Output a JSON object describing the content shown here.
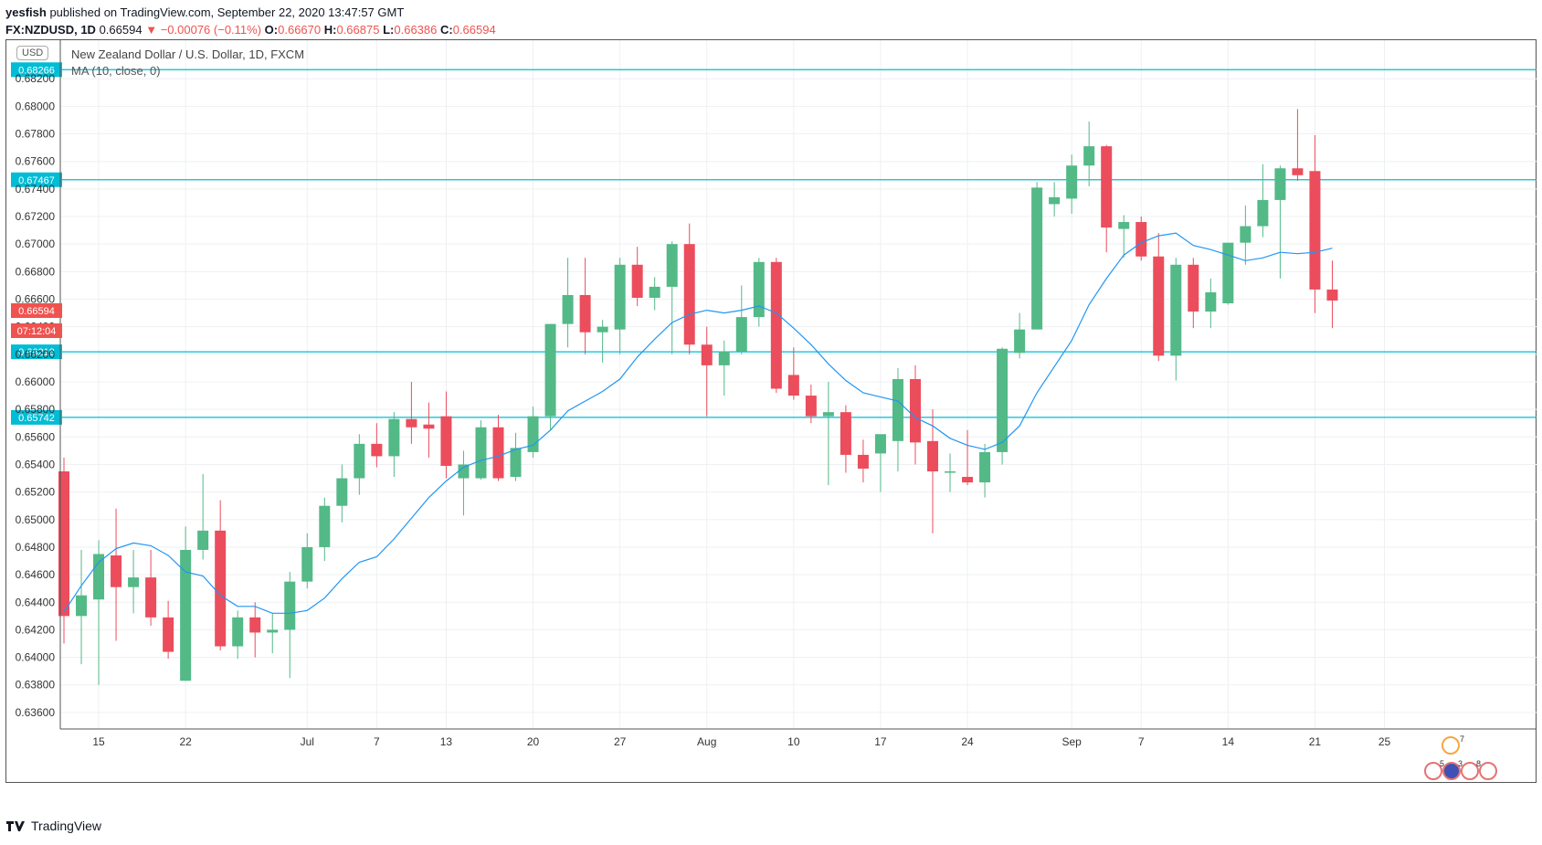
{
  "header": {
    "publisher": "yesfish",
    "published_text": "published on TradingView.com, September 22, 2020 13:47:57 GMT",
    "symbol": "FX:NZDUSD, 1D",
    "last": "0.66594",
    "change": "−0.00076 (−0.11%)",
    "o_label": "O:",
    "o": "0.66670",
    "h_label": "H:",
    "h": "0.66875",
    "l_label": "L:",
    "l": "0.66386",
    "c_label": "C:",
    "c": "0.66594"
  },
  "chart_header": {
    "currency": "USD",
    "title": "New Zealand Dollar / U.S. Dollar, 1D, FXCM",
    "indicator": "MA (10, close, 0)"
  },
  "price_badges": {
    "current_price": "0.66594",
    "countdown": "07:12:04"
  },
  "footer": {
    "brand": "TradingView"
  },
  "colors": {
    "up": "#53b987",
    "down": "#eb4d5c",
    "ma": "#2196f3",
    "hline": "#00bcd4",
    "badge_red": "#ef5350",
    "badge_cyan": "#00bcd4"
  },
  "chart_data": {
    "type": "candlestick",
    "symbol": "FX:NZDUSD",
    "timeframe": "1D",
    "ylim": [
      0.6348,
      0.6848
    ],
    "y_ticks": [
      "0.68200",
      "0.68000",
      "0.67800",
      "0.67600",
      "0.67400",
      "0.67200",
      "0.67000",
      "0.66800",
      "0.66600",
      "0.66400",
      "0.66200",
      "0.66000",
      "0.65800",
      "0.65600",
      "0.65400",
      "0.65200",
      "0.65000",
      "0.64800",
      "0.64600",
      "0.64400",
      "0.64200",
      "0.64000",
      "0.63800",
      "0.63600"
    ],
    "x_ticks": [
      {
        "label": "15",
        "index": 2
      },
      {
        "label": "22",
        "index": 7
      },
      {
        "label": "Jul",
        "index": 14
      },
      {
        "label": "7",
        "index": 18
      },
      {
        "label": "13",
        "index": 22
      },
      {
        "label": "20",
        "index": 27
      },
      {
        "label": "27",
        "index": 32
      },
      {
        "label": "Aug",
        "index": 37
      },
      {
        "label": "10",
        "index": 42
      },
      {
        "label": "17",
        "index": 47
      },
      {
        "label": "24",
        "index": 52
      },
      {
        "label": "Sep",
        "index": 58
      },
      {
        "label": "7",
        "index": 62
      },
      {
        "label": "14",
        "index": 67
      },
      {
        "label": "21",
        "index": 72
      },
      {
        "label": "25",
        "index": 76
      }
    ],
    "horizontal_lines": [
      {
        "price": 0.68266,
        "label": "0.68266"
      },
      {
        "price": 0.67467,
        "label": "0.67467"
      },
      {
        "price": 0.66218,
        "label": "0.66218"
      },
      {
        "price": 0.65742,
        "label": "0.65742"
      }
    ],
    "candles": [
      {
        "o": 0.6535,
        "h": 0.6545,
        "l": 0.641,
        "c": 0.643
      },
      {
        "o": 0.643,
        "h": 0.6478,
        "l": 0.6395,
        "c": 0.6445
      },
      {
        "o": 0.6442,
        "h": 0.6485,
        "l": 0.638,
        "c": 0.6475
      },
      {
        "o": 0.6474,
        "h": 0.6508,
        "l": 0.6412,
        "c": 0.6451
      },
      {
        "o": 0.6451,
        "h": 0.6478,
        "l": 0.6432,
        "c": 0.6458
      },
      {
        "o": 0.6458,
        "h": 0.6478,
        "l": 0.6423,
        "c": 0.6429
      },
      {
        "o": 0.6429,
        "h": 0.6441,
        "l": 0.6399,
        "c": 0.6404
      },
      {
        "o": 0.6383,
        "h": 0.6495,
        "l": 0.6383,
        "c": 0.6478
      },
      {
        "o": 0.6478,
        "h": 0.6533,
        "l": 0.6471,
        "c": 0.6492
      },
      {
        "o": 0.6492,
        "h": 0.6514,
        "l": 0.6405,
        "c": 0.6408
      },
      {
        "o": 0.6408,
        "h": 0.6434,
        "l": 0.6399,
        "c": 0.6429
      },
      {
        "o": 0.6429,
        "h": 0.644,
        "l": 0.64,
        "c": 0.6418
      },
      {
        "o": 0.6418,
        "h": 0.6432,
        "l": 0.6403,
        "c": 0.642
      },
      {
        "o": 0.642,
        "h": 0.6462,
        "l": 0.6385,
        "c": 0.6455
      },
      {
        "o": 0.6455,
        "h": 0.649,
        "l": 0.645,
        "c": 0.648
      },
      {
        "o": 0.648,
        "h": 0.6516,
        "l": 0.647,
        "c": 0.651
      },
      {
        "o": 0.651,
        "h": 0.654,
        "l": 0.6498,
        "c": 0.653
      },
      {
        "o": 0.653,
        "h": 0.6562,
        "l": 0.6518,
        "c": 0.6555
      },
      {
        "o": 0.6555,
        "h": 0.657,
        "l": 0.6538,
        "c": 0.6546
      },
      {
        "o": 0.6546,
        "h": 0.6578,
        "l": 0.6531,
        "c": 0.6573
      },
      {
        "o": 0.6573,
        "h": 0.66,
        "l": 0.6555,
        "c": 0.6567
      },
      {
        "o": 0.6569,
        "h": 0.6585,
        "l": 0.6545,
        "c": 0.6566
      },
      {
        "o": 0.6575,
        "h": 0.6593,
        "l": 0.653,
        "c": 0.6539
      },
      {
        "o": 0.653,
        "h": 0.655,
        "l": 0.6503,
        "c": 0.654
      },
      {
        "o": 0.653,
        "h": 0.6572,
        "l": 0.6529,
        "c": 0.6567
      },
      {
        "o": 0.6567,
        "h": 0.6576,
        "l": 0.6528,
        "c": 0.653
      },
      {
        "o": 0.6531,
        "h": 0.6563,
        "l": 0.6528,
        "c": 0.6552
      },
      {
        "o": 0.6549,
        "h": 0.6582,
        "l": 0.6545,
        "c": 0.6575
      },
      {
        "o": 0.6575,
        "h": 0.6642,
        "l": 0.6565,
        "c": 0.6642
      },
      {
        "o": 0.6642,
        "h": 0.669,
        "l": 0.6625,
        "c": 0.6663
      },
      {
        "o": 0.6663,
        "h": 0.669,
        "l": 0.662,
        "c": 0.6636
      },
      {
        "o": 0.6636,
        "h": 0.6645,
        "l": 0.6614,
        "c": 0.664
      },
      {
        "o": 0.6638,
        "h": 0.669,
        "l": 0.662,
        "c": 0.6685
      },
      {
        "o": 0.6685,
        "h": 0.6698,
        "l": 0.6655,
        "c": 0.6661
      },
      {
        "o": 0.6661,
        "h": 0.6676,
        "l": 0.6652,
        "c": 0.6669
      },
      {
        "o": 0.6669,
        "h": 0.6702,
        "l": 0.662,
        "c": 0.67
      },
      {
        "o": 0.67,
        "h": 0.6715,
        "l": 0.662,
        "c": 0.6627
      },
      {
        "o": 0.6627,
        "h": 0.664,
        "l": 0.6575,
        "c": 0.6612
      },
      {
        "o": 0.6612,
        "h": 0.663,
        "l": 0.659,
        "c": 0.6622
      },
      {
        "o": 0.6622,
        "h": 0.667,
        "l": 0.662,
        "c": 0.6647
      },
      {
        "o": 0.6647,
        "h": 0.669,
        "l": 0.664,
        "c": 0.6687
      },
      {
        "o": 0.6687,
        "h": 0.669,
        "l": 0.6592,
        "c": 0.6595
      },
      {
        "o": 0.6605,
        "h": 0.6625,
        "l": 0.6587,
        "c": 0.659
      },
      {
        "o": 0.659,
        "h": 0.6598,
        "l": 0.657,
        "c": 0.6575
      },
      {
        "o": 0.6575,
        "h": 0.66,
        "l": 0.6525,
        "c": 0.6578
      },
      {
        "o": 0.6578,
        "h": 0.6583,
        "l": 0.6534,
        "c": 0.6547
      },
      {
        "o": 0.6547,
        "h": 0.6558,
        "l": 0.6527,
        "c": 0.6537
      },
      {
        "o": 0.6548,
        "h": 0.656,
        "l": 0.652,
        "c": 0.6562
      },
      {
        "o": 0.6557,
        "h": 0.661,
        "l": 0.6535,
        "c": 0.6602
      },
      {
        "o": 0.6602,
        "h": 0.6612,
        "l": 0.654,
        "c": 0.6556
      },
      {
        "o": 0.6557,
        "h": 0.658,
        "l": 0.649,
        "c": 0.6535
      },
      {
        "o": 0.6535,
        "h": 0.6548,
        "l": 0.652,
        "c": 0.6535
      },
      {
        "o": 0.6531,
        "h": 0.6565,
        "l": 0.6525,
        "c": 0.6527
      },
      {
        "o": 0.6527,
        "h": 0.6555,
        "l": 0.6516,
        "c": 0.6549
      },
      {
        "o": 0.6549,
        "h": 0.6625,
        "l": 0.654,
        "c": 0.6624
      },
      {
        "o": 0.6621,
        "h": 0.665,
        "l": 0.6617,
        "c": 0.6638
      },
      {
        "o": 0.6638,
        "h": 0.6745,
        "l": 0.6638,
        "c": 0.6741
      },
      {
        "o": 0.6729,
        "h": 0.6745,
        "l": 0.672,
        "c": 0.6734
      },
      {
        "o": 0.6733,
        "h": 0.6765,
        "l": 0.6722,
        "c": 0.6757
      },
      {
        "o": 0.6757,
        "h": 0.6789,
        "l": 0.6742,
        "c": 0.6771
      },
      {
        "o": 0.6771,
        "h": 0.6772,
        "l": 0.6694,
        "c": 0.6712
      },
      {
        "o": 0.6711,
        "h": 0.6721,
        "l": 0.669,
        "c": 0.6716
      },
      {
        "o": 0.6716,
        "h": 0.672,
        "l": 0.6688,
        "c": 0.6691
      },
      {
        "o": 0.6691,
        "h": 0.6708,
        "l": 0.6615,
        "c": 0.6619
      },
      {
        "o": 0.6619,
        "h": 0.669,
        "l": 0.6601,
        "c": 0.6685
      },
      {
        "o": 0.6685,
        "h": 0.669,
        "l": 0.6639,
        "c": 0.6651
      },
      {
        "o": 0.6651,
        "h": 0.6675,
        "l": 0.6639,
        "c": 0.6665
      },
      {
        "o": 0.6657,
        "h": 0.6701,
        "l": 0.6656,
        "c": 0.6701
      },
      {
        "o": 0.6701,
        "h": 0.6728,
        "l": 0.6685,
        "c": 0.6713
      },
      {
        "o": 0.6713,
        "h": 0.6758,
        "l": 0.6705,
        "c": 0.6732
      },
      {
        "o": 0.6732,
        "h": 0.6757,
        "l": 0.6675,
        "c": 0.6755
      },
      {
        "o": 0.6755,
        "h": 0.6798,
        "l": 0.6746,
        "c": 0.675
      },
      {
        "o": 0.6753,
        "h": 0.6779,
        "l": 0.665,
        "c": 0.6667
      },
      {
        "o": 0.6667,
        "h": 0.6688,
        "l": 0.6639,
        "c": 0.6659
      }
    ],
    "ma": {
      "name": "MA (10, close, 0)",
      "values": [
        0.6433,
        0.6452,
        0.6469,
        0.6479,
        0.6483,
        0.6481,
        0.6474,
        0.6462,
        0.6459,
        0.6445,
        0.6437,
        0.6437,
        0.6432,
        0.6432,
        0.6434,
        0.6443,
        0.6457,
        0.6469,
        0.6473,
        0.6486,
        0.6501,
        0.6516,
        0.6528,
        0.6538,
        0.6543,
        0.6546,
        0.6551,
        0.6554,
        0.6565,
        0.6579,
        0.6586,
        0.6593,
        0.6602,
        0.6618,
        0.6631,
        0.6643,
        0.6649,
        0.6652,
        0.665,
        0.6652,
        0.6655,
        0.665,
        0.6639,
        0.6627,
        0.6613,
        0.6601,
        0.6592,
        0.6589,
        0.6586,
        0.6574,
        0.6568,
        0.6559,
        0.6554,
        0.6551,
        0.6556,
        0.6568,
        0.6592,
        0.6611,
        0.663,
        0.6656,
        0.6675,
        0.6692,
        0.6701,
        0.6706,
        0.6708,
        0.6699,
        0.6696,
        0.6692,
        0.6688,
        0.669,
        0.6694,
        0.6693,
        0.6694,
        0.6697
      ]
    }
  }
}
